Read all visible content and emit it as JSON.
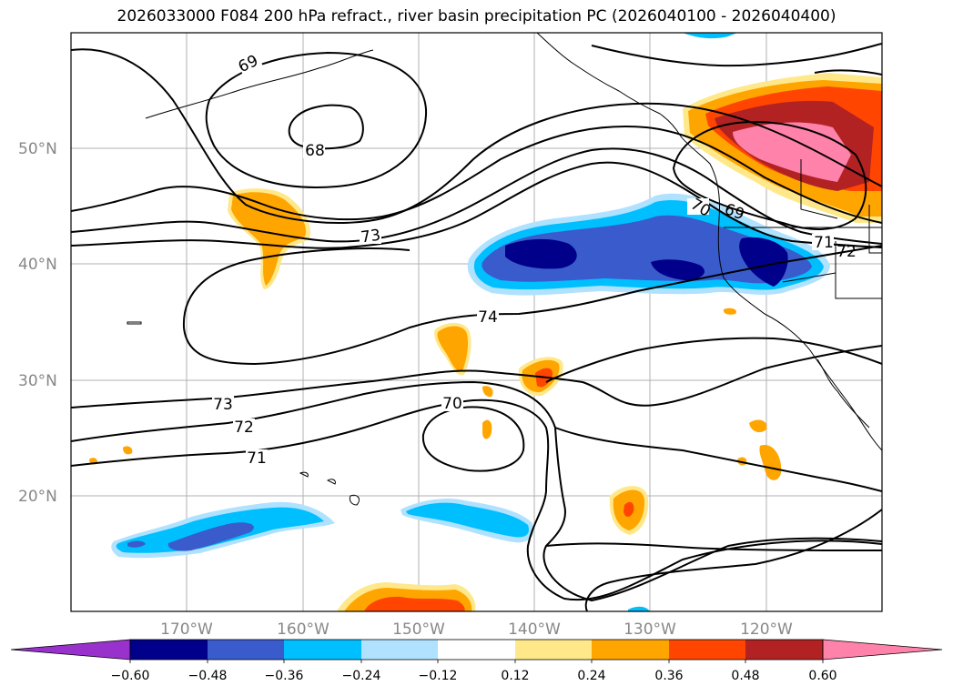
{
  "title": "2026033000 F084 200 hPa refract., river basin precipitation PC (2026040100 - 2026040400)",
  "map": {
    "lat_labels": [
      "50°N",
      "40°N",
      "30°N",
      "20°N"
    ],
    "lon_labels": [
      "170°W",
      "160°W",
      "150°W",
      "140°W",
      "130°W",
      "120°W"
    ],
    "contour_labels": [
      "69",
      "68",
      "73",
      "74",
      "70",
      "69",
      "71",
      "72",
      "73",
      "72",
      "71",
      "70"
    ]
  },
  "colorbar": {
    "ticks": [
      "−0.60",
      "−0.48",
      "−0.36",
      "−0.24",
      "−0.12",
      "0.12",
      "0.24",
      "0.36",
      "0.48",
      "0.60"
    ],
    "colors": [
      "#9932cc",
      "#00008b",
      "#3a5bcc",
      "#00bfff",
      "#b0e2ff",
      "#ffffff",
      "#ffe88a",
      "#ffa500",
      "#ff4500",
      "#b22222",
      "#ff82ab"
    ]
  }
}
